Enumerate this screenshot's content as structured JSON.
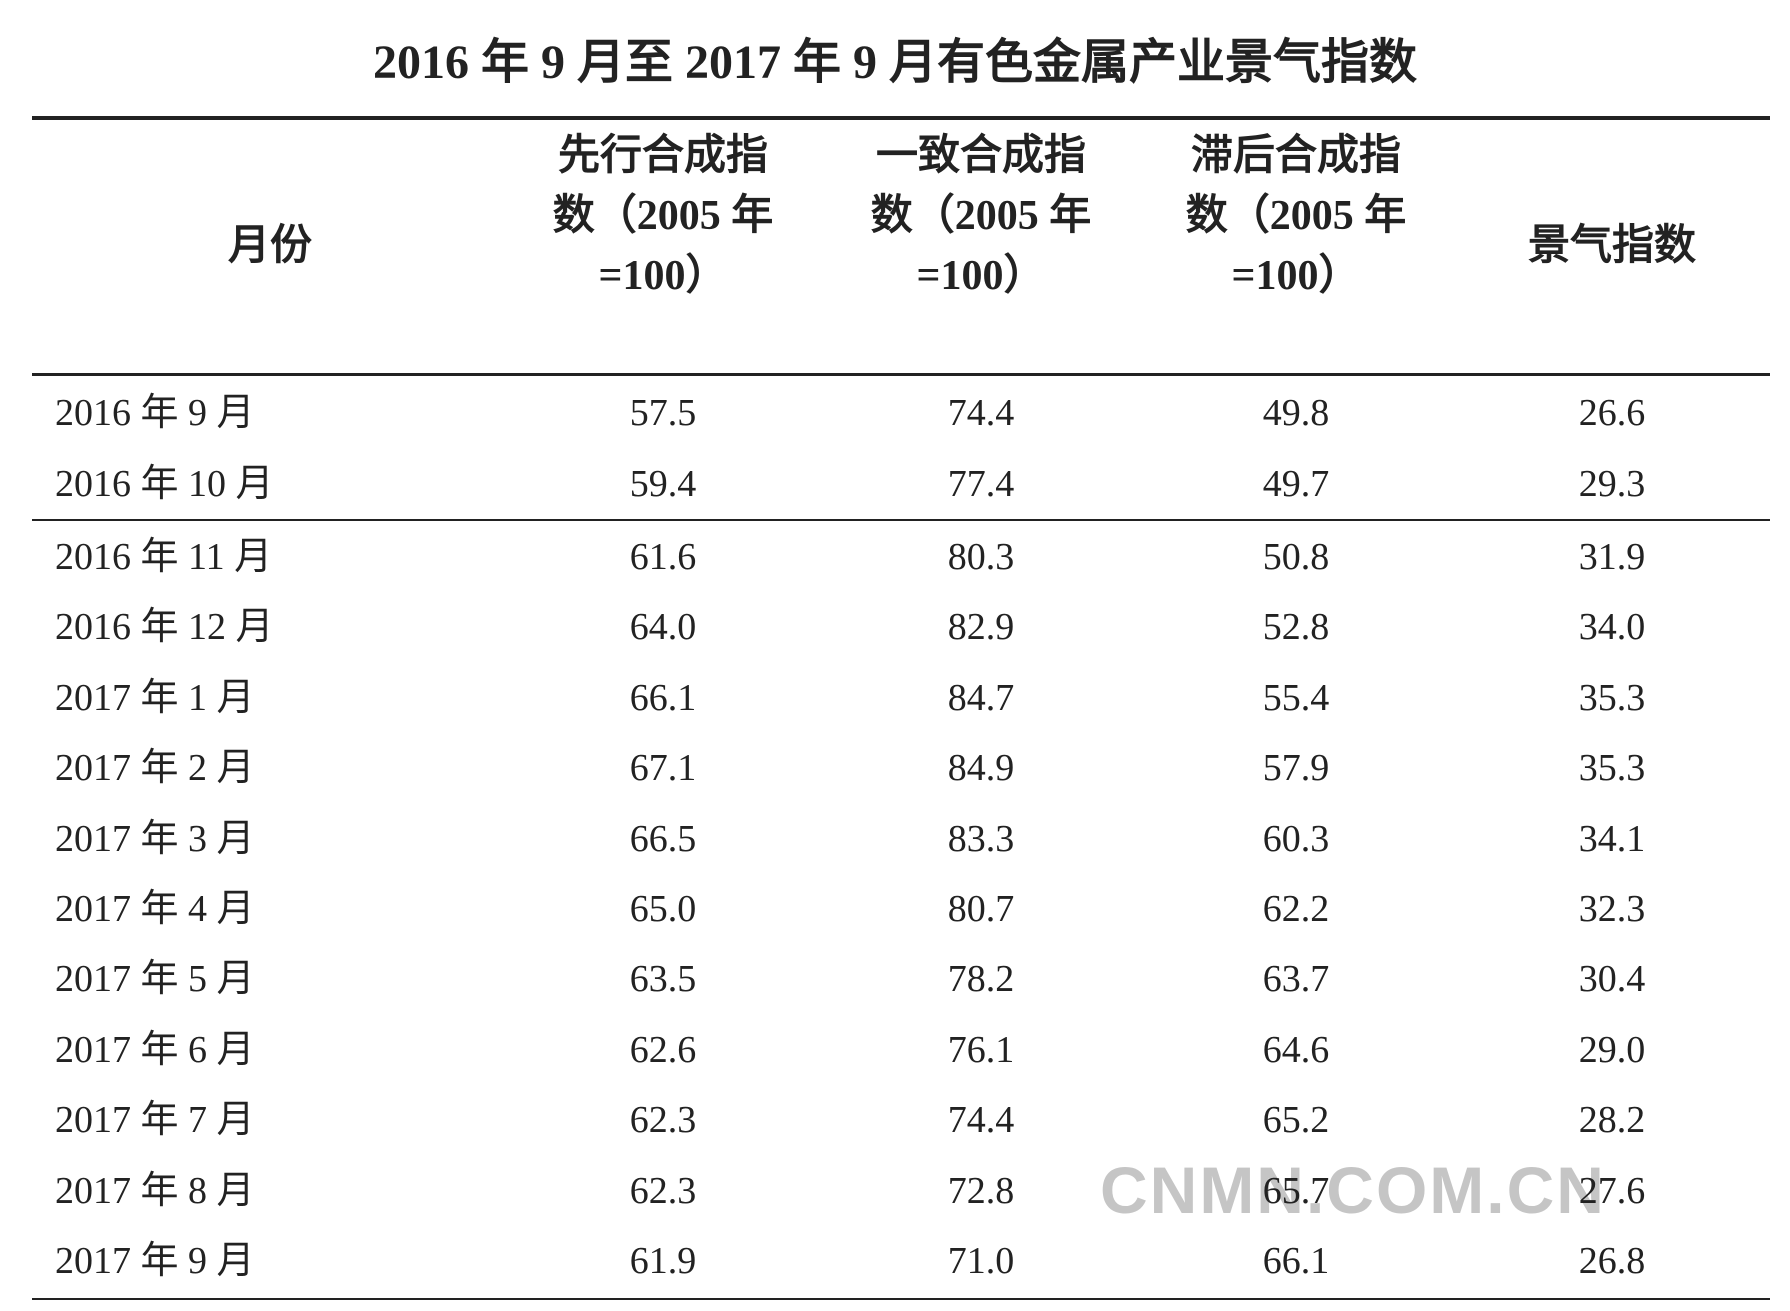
{
  "title": "2016 年 9 月至 2017 年 9 月有色金属产业景气指数",
  "table": {
    "header": [
      "月份",
      "先行合成指数（2005 年=100）",
      "一致合成指数（2005 年=100）",
      "滞后合成指数（2005 年=100）",
      "景气指数"
    ],
    "rows": [
      [
        "2016 年 9 月",
        "57.5",
        "74.4",
        "49.8",
        "26.6"
      ],
      [
        "2016 年 10 月",
        "59.4",
        "77.4",
        "49.7",
        "29.3"
      ],
      [
        "2016 年 11 月",
        "61.6",
        "80.3",
        "50.8",
        "31.9"
      ],
      [
        "2016 年 12 月",
        "64.0",
        "82.9",
        "52.8",
        "34.0"
      ],
      [
        "2017 年 1 月",
        "66.1",
        "84.7",
        "55.4",
        "35.3"
      ],
      [
        "2017 年 2 月",
        "67.1",
        "84.9",
        "57.9",
        "35.3"
      ],
      [
        "2017 年 3 月",
        "66.5",
        "83.3",
        "60.3",
        "34.1"
      ],
      [
        "2017 年 4 月",
        "65.0",
        "80.7",
        "62.2",
        "32.3"
      ],
      [
        "2017 年 5 月",
        "63.5",
        "78.2",
        "63.7",
        "30.4"
      ],
      [
        "2017 年 6 月",
        "62.6",
        "76.1",
        "64.6",
        "29.0"
      ],
      [
        "2017 年 7 月",
        "62.3",
        "74.4",
        "65.2",
        "28.2"
      ],
      [
        "2017 年 8 月",
        "62.3",
        "72.8",
        "65.7",
        "27.6"
      ],
      [
        "2017 年 9 月",
        "61.9",
        "71.0",
        "66.1",
        "26.8"
      ]
    ]
  },
  "watermark": "CNMN.COM.CN"
}
